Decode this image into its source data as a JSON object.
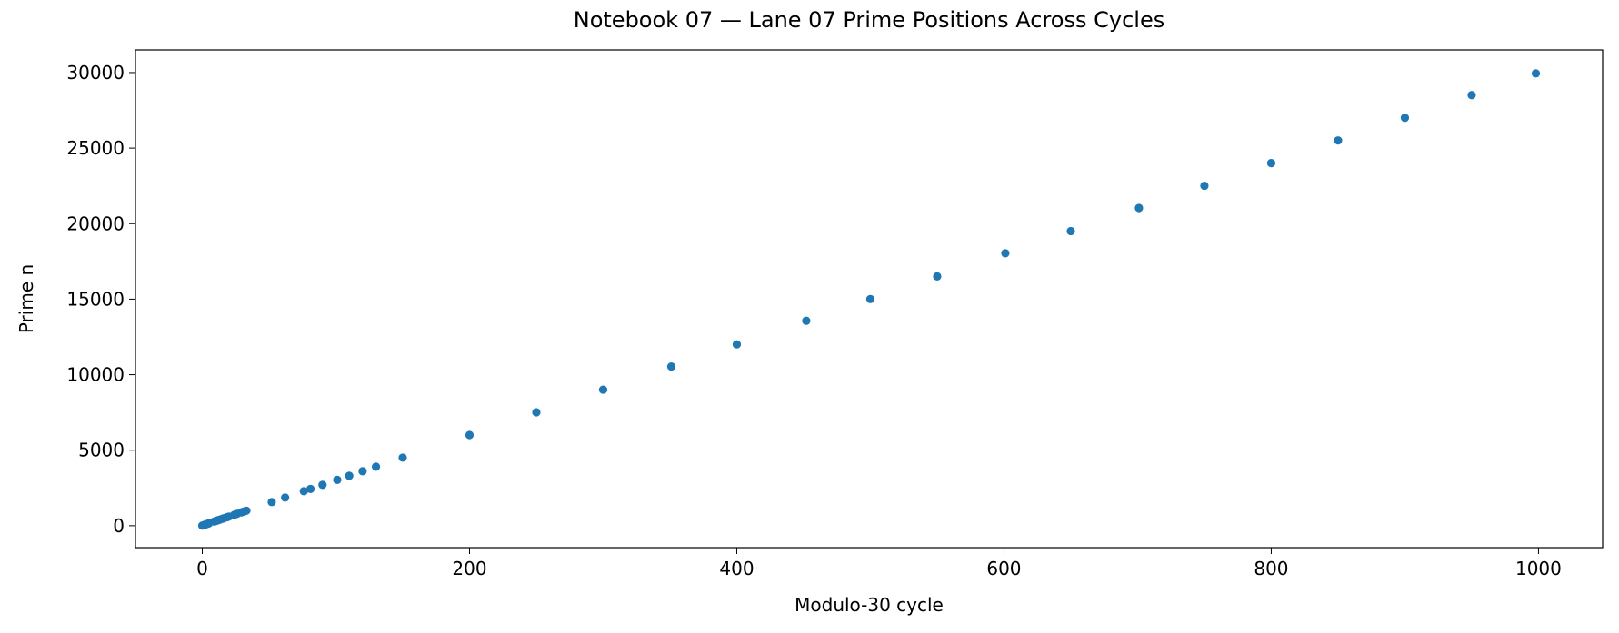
{
  "chart_data": {
    "type": "scatter",
    "title": "Notebook 07 — Lane 07 Prime Positions Across Cycles",
    "x_label": "Modulo-30 cycle",
    "y_label": "Prime n",
    "series": [
      {
        "color": "#1f77b4",
        "x": [
          0,
          1,
          2,
          3,
          4,
          5,
          9,
          10,
          11,
          12,
          13,
          15,
          16,
          18,
          19,
          20,
          24,
          25,
          26,
          29,
          30,
          31,
          32,
          33,
          52,
          62,
          76,
          81,
          90,
          101,
          110,
          120,
          130,
          150,
          200,
          250,
          300,
          351,
          400,
          452,
          500,
          550,
          601,
          650,
          701,
          750,
          800,
          850,
          900,
          950,
          998
        ],
        "values": [
          7,
          37,
          67,
          97,
          127,
          157,
          277,
          307,
          337,
          367,
          397,
          457,
          487,
          547,
          577,
          607,
          727,
          757,
          787,
          877,
          907,
          937,
          967,
          997,
          1567,
          1867,
          2287,
          2437,
          2707,
          3037,
          3307,
          3607,
          3907,
          4507,
          6007,
          7507,
          9007,
          10537,
          12007,
          13567,
          15007,
          16507,
          18037,
          19507,
          21037,
          22507,
          24007,
          25507,
          27007,
          28507,
          29947
        ]
      }
    ],
    "xlim": [
      -50,
      1048
    ],
    "ylim": [
      -1450,
      31500
    ],
    "xticks": [
      0,
      200,
      400,
      600,
      800,
      1000
    ],
    "yticks": [
      0,
      5000,
      10000,
      15000,
      20000,
      25000,
      30000
    ]
  }
}
